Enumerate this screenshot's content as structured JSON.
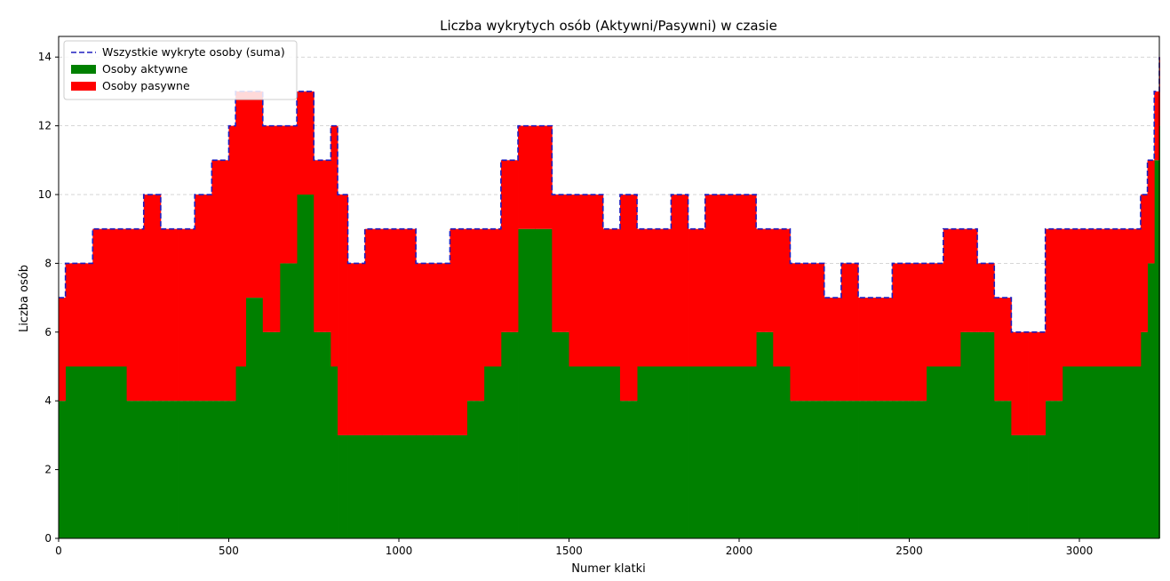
{
  "chart_data": {
    "type": "area",
    "title": "Liczba wykrytych osób (Aktywni/Pasywni) w czasie",
    "xlabel": "Numer klatki",
    "ylabel": "Liczba osób",
    "xlim": [
      0,
      3235
    ],
    "ylim": [
      0,
      14.6
    ],
    "xticks": [
      0,
      500,
      1000,
      1500,
      2000,
      2500,
      3000
    ],
    "yticks": [
      0,
      2,
      4,
      6,
      8,
      10,
      12,
      14
    ],
    "grid": "horizontal dashed",
    "legend_position": "top-left",
    "colors": {
      "total": "#1f1fbf",
      "active": "#008000",
      "passive": "#ff0000",
      "grid": "#c8c8c8"
    },
    "series": [
      {
        "name": "Wszystkie wykryte osoby (suma)",
        "style": "dashed-line",
        "x": [
          0,
          20,
          50,
          100,
          150,
          200,
          250,
          300,
          350,
          400,
          450,
          500,
          520,
          550,
          600,
          650,
          700,
          750,
          800,
          820,
          850,
          900,
          950,
          1000,
          1050,
          1100,
          1150,
          1200,
          1250,
          1300,
          1350,
          1400,
          1450,
          1500,
          1550,
          1600,
          1650,
          1700,
          1750,
          1800,
          1850,
          1900,
          1950,
          2000,
          2050,
          2100,
          2150,
          2200,
          2250,
          2300,
          2350,
          2400,
          2450,
          2500,
          2550,
          2600,
          2650,
          2700,
          2750,
          2800,
          2850,
          2900,
          2950,
          3000,
          3050,
          3100,
          3150,
          3180,
          3200,
          3220,
          3235
        ],
        "values": [
          7,
          8,
          8,
          9,
          9,
          9,
          10,
          9,
          9,
          10,
          11,
          12,
          13,
          13,
          12,
          12,
          13,
          11,
          12,
          10,
          8,
          9,
          9,
          9,
          8,
          8,
          9,
          9,
          9,
          11,
          12,
          12,
          10,
          10,
          10,
          9,
          10,
          9,
          9,
          10,
          9,
          10,
          10,
          10,
          9,
          9,
          8,
          8,
          7,
          8,
          7,
          7,
          8,
          8,
          8,
          9,
          9,
          8,
          7,
          6,
          6,
          9,
          9,
          9,
          9,
          9,
          9,
          10,
          11,
          13,
          14
        ]
      },
      {
        "name": "Osoby aktywne",
        "style": "filled-area",
        "x": [
          0,
          20,
          50,
          100,
          150,
          200,
          250,
          300,
          350,
          400,
          450,
          500,
          520,
          550,
          600,
          650,
          700,
          750,
          800,
          820,
          850,
          900,
          950,
          1000,
          1050,
          1100,
          1150,
          1200,
          1250,
          1300,
          1350,
          1400,
          1450,
          1500,
          1550,
          1600,
          1650,
          1700,
          1750,
          1800,
          1850,
          1900,
          1950,
          2000,
          2050,
          2100,
          2150,
          2200,
          2250,
          2300,
          2350,
          2400,
          2450,
          2500,
          2550,
          2600,
          2650,
          2700,
          2750,
          2800,
          2850,
          2900,
          2950,
          3000,
          3050,
          3100,
          3150,
          3180,
          3200,
          3220,
          3235
        ],
        "values": [
          4,
          5,
          5,
          5,
          5,
          4,
          4,
          4,
          4,
          4,
          4,
          4,
          5,
          7,
          6,
          8,
          10,
          6,
          5,
          3,
          3,
          3,
          3,
          3,
          3,
          3,
          3,
          4,
          5,
          6,
          9,
          9,
          6,
          5,
          5,
          5,
          4,
          5,
          5,
          5,
          5,
          5,
          5,
          5,
          6,
          5,
          4,
          4,
          4,
          4,
          4,
          4,
          4,
          4,
          5,
          5,
          6,
          6,
          4,
          3,
          3,
          4,
          5,
          5,
          5,
          5,
          5,
          6,
          8,
          11,
          12
        ]
      },
      {
        "name": "Osoby pasywne",
        "style": "stacked-area",
        "x": [
          0,
          20,
          50,
          100,
          150,
          200,
          250,
          300,
          350,
          400,
          450,
          500,
          520,
          550,
          600,
          650,
          700,
          750,
          800,
          820,
          850,
          900,
          950,
          1000,
          1050,
          1100,
          1150,
          1200,
          1250,
          1300,
          1350,
          1400,
          1450,
          1500,
          1550,
          1600,
          1650,
          1700,
          1750,
          1800,
          1850,
          1900,
          1950,
          2000,
          2050,
          2100,
          2150,
          2200,
          2250,
          2300,
          2350,
          2400,
          2450,
          2500,
          2550,
          2600,
          2650,
          2700,
          2750,
          2800,
          2850,
          2900,
          2950,
          3000,
          3050,
          3100,
          3150,
          3180,
          3200,
          3220,
          3235
        ],
        "values": [
          3,
          3,
          3,
          4,
          4,
          5,
          6,
          5,
          5,
          6,
          7,
          8,
          8,
          6,
          6,
          4,
          3,
          5,
          7,
          7,
          5,
          6,
          6,
          6,
          5,
          5,
          6,
          5,
          4,
          5,
          3,
          3,
          4,
          5,
          5,
          4,
          6,
          4,
          4,
          5,
          4,
          5,
          5,
          5,
          3,
          4,
          4,
          4,
          3,
          4,
          3,
          3,
          4,
          4,
          3,
          4,
          3,
          2,
          3,
          3,
          3,
          5,
          4,
          4,
          4,
          4,
          4,
          4,
          3,
          2,
          2
        ]
      }
    ]
  }
}
